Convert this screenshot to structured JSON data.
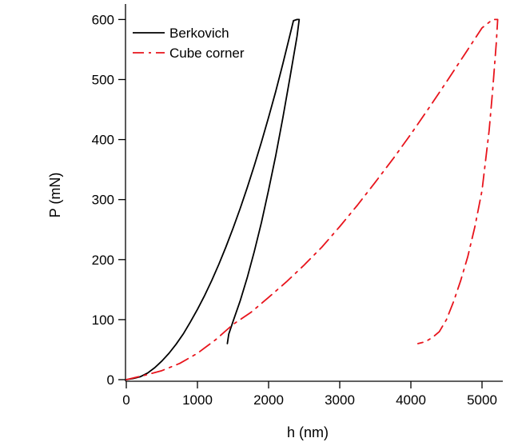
{
  "chart_data": {
    "type": "line",
    "xlabel": "h (nm)",
    "ylabel": "P (mN)",
    "xlim": [
      0,
      5300
    ],
    "ylim": [
      0,
      620
    ],
    "xticks": [
      0,
      1000,
      2000,
      3000,
      4000,
      5000
    ],
    "yticks": [
      0,
      100,
      200,
      300,
      400,
      500,
      600
    ],
    "grid": false,
    "legend_position": "top-left",
    "series": [
      {
        "name": "Berkovich",
        "color": "#000000",
        "dash": "solid",
        "x": [
          0,
          100,
          200,
          300,
          400,
          500,
          600,
          700,
          800,
          900,
          1000,
          1100,
          1200,
          1300,
          1400,
          1500,
          1600,
          1700,
          1800,
          1900,
          2000,
          2100,
          2200,
          2300,
          2350,
          2400,
          2430,
          2400,
          2300,
          2200,
          2100,
          2000,
          1900,
          1800,
          1700,
          1600,
          1500,
          1440,
          1420
        ],
        "y": [
          0,
          2,
          5,
          11,
          20,
          31,
          44,
          59,
          76,
          96,
          117,
          140,
          165,
          192,
          221,
          252,
          285,
          320,
          357,
          396,
          437,
          480,
          526,
          574,
          598,
          600,
          600,
          572,
          503,
          436,
          373,
          316,
          262,
          214,
          170,
          131,
          97,
          76,
          60
        ]
      },
      {
        "name": "Cube corner",
        "color": "#e8141c",
        "dash": "dashdot",
        "x": [
          0,
          250,
          500,
          750,
          1000,
          1250,
          1500,
          1750,
          2000,
          2250,
          2500,
          2750,
          3000,
          3250,
          3500,
          3750,
          4000,
          4250,
          4500,
          4750,
          5000,
          5150,
          5220,
          5200,
          5150,
          5100,
          5000,
          4900,
          4800,
          4700,
          4600,
          4500,
          4400,
          4300,
          4200,
          4100
        ],
        "y": [
          0,
          7,
          15,
          27,
          44,
          66,
          92,
          112,
          137,
          163,
          191,
          221,
          255,
          291,
          329,
          368,
          409,
          452,
          496,
          541,
          586,
          600,
          600,
          560,
          482,
          415,
          315,
          255,
          205,
          165,
          130,
          100,
          80,
          70,
          63,
          60
        ]
      }
    ]
  }
}
